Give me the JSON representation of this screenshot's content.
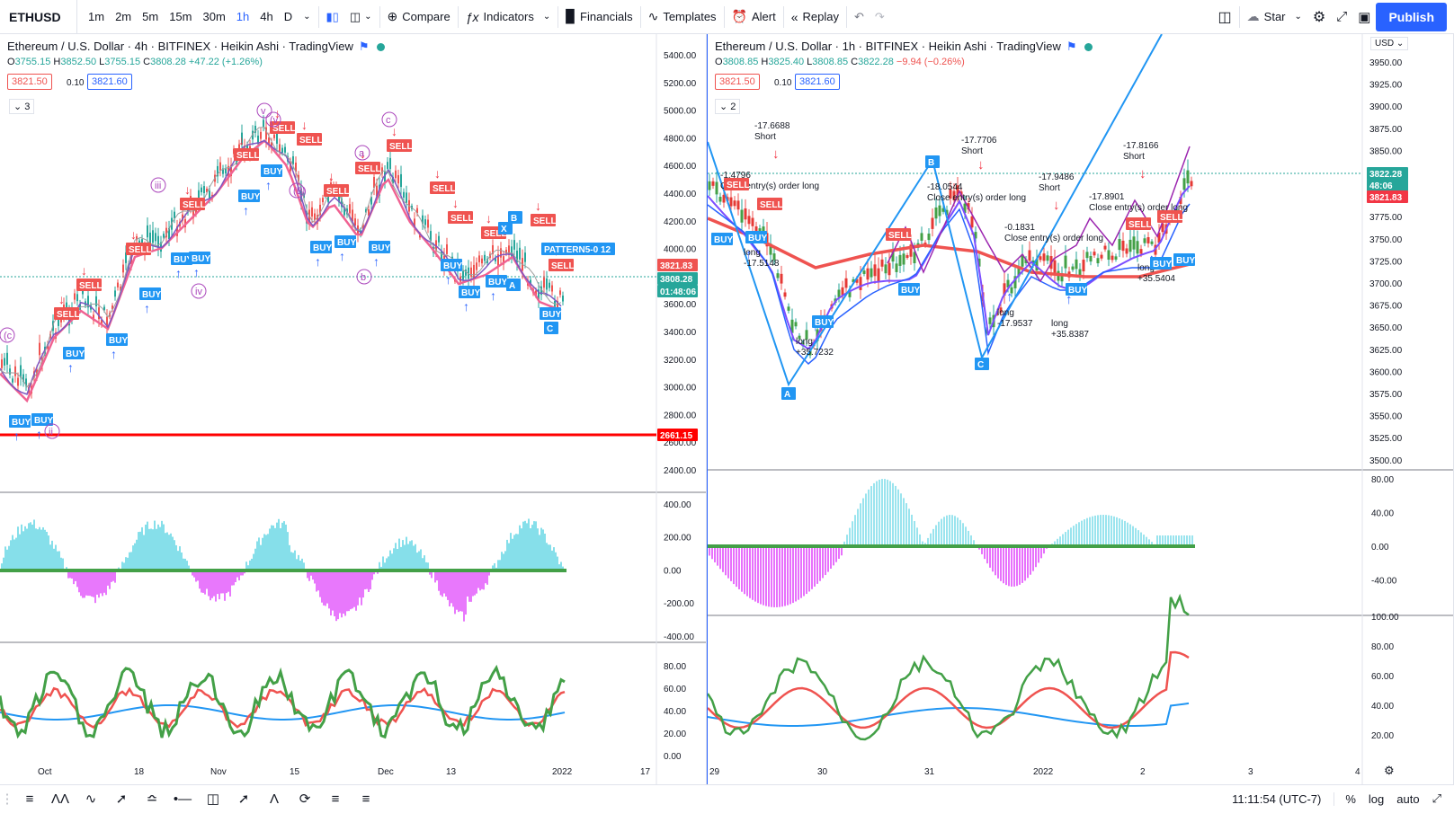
{
  "toolbar": {
    "symbol": "ETHUSD",
    "intervals": [
      "1m",
      "2m",
      "5m",
      "15m",
      "30m",
      "1h",
      "4h",
      "D"
    ],
    "active_interval": "1h",
    "compare": "Compare",
    "indicators": "Indicators",
    "financials": "Financials",
    "templates": "Templates",
    "alert": "Alert",
    "replay": "Replay",
    "star": "Star",
    "publish": "Publish"
  },
  "left_pane": {
    "title": "Ethereum / U.S. Dollar · 4h · BITFINEX · Heikin Ashi · TradingView",
    "ohlc": {
      "o": "3755.15",
      "h": "3852.50",
      "l": "3755.15",
      "c": "3808.28",
      "chg": "+47.22 (+1.26%)"
    },
    "bid": "3821.50",
    "spread": "0.10",
    "ask": "3821.60",
    "collapsed_count": "3",
    "price_axis": [
      "5400.00",
      "5200.00",
      "5000.00",
      "4800.00",
      "4600.00",
      "4400.00",
      "4200.00",
      "4000.00",
      "3800.00",
      "3600.00",
      "3400.00",
      "3200.00",
      "3000.00",
      "2800.00",
      "2600.00",
      "2400.00"
    ],
    "price_tags": {
      "last": "3821.83",
      "close": "3808.28",
      "countdown": "01:48:06",
      "line": "2661.15"
    },
    "osc_axis": [
      "400.00",
      "200.00",
      "0.00",
      "-200.00",
      "-400.00"
    ],
    "rsi_axis": [
      "80.00",
      "60.00",
      "40.00",
      "20.00",
      "0.00"
    ],
    "time_axis": [
      "Oct",
      "18",
      "Nov",
      "15",
      "Dec",
      "13",
      "2022",
      "17"
    ],
    "pattern_label": "PATTERN5-0 12",
    "wave_labels": [
      "(c",
      "ii",
      "iii",
      "iv",
      "v",
      "(v",
      "a",
      "b",
      "c",
      "(B)",
      "A",
      "B",
      "C",
      "X"
    ]
  },
  "right_pane": {
    "title": "Ethereum / U.S. Dollar · 1h · BITFINEX · Heikin Ashi · TradingView",
    "ohlc": {
      "o": "3808.85",
      "h": "3825.40",
      "l": "3808.85",
      "c": "3822.28",
      "chg": "−9.94 (−0.26%)"
    },
    "bid": "3821.50",
    "spread": "0.10",
    "ask": "3821.60",
    "collapsed_count": "2",
    "currency": "USD",
    "price_axis": [
      "3950.00",
      "3925.00",
      "3900.00",
      "3875.00",
      "3850.00",
      "3825.00",
      "3800.00",
      "3775.00",
      "3750.00",
      "3725.00",
      "3700.00",
      "3675.00",
      "3650.00",
      "3625.00",
      "3600.00",
      "3575.00",
      "3550.00",
      "3525.00",
      "3500.00"
    ],
    "price_tags": {
      "last": "3822.28",
      "countdown": "48:06",
      "red": "3821.83"
    },
    "osc_axis": [
      "80.00",
      "40.00",
      "0.00",
      "-40.00"
    ],
    "rsi_axis": [
      "100.00",
      "80.00",
      "60.00",
      "40.00",
      "20.00"
    ],
    "time_axis": [
      "29",
      "30",
      "31",
      "2022",
      "2",
      "3",
      "4"
    ],
    "annotations": [
      {
        "t1": "-17.6688",
        "t2": "Short"
      },
      {
        "t1": "-1.4796",
        "t2": "Close entry(s) order long"
      },
      {
        "t1": "long",
        "t2": "-17.5148"
      },
      {
        "t1": "long",
        "t2": "+35.7232"
      },
      {
        "t1": "-17.7706",
        "t2": "Short"
      },
      {
        "t1": "-18.0544",
        "t2": "Close entry(s) order long"
      },
      {
        "t1": "long",
        "t2": "-17.9537"
      },
      {
        "t1": "-17.9486",
        "t2": "Short"
      },
      {
        "t1": "-0.1831",
        "t2": "Close entry(s) order long"
      },
      {
        "t1": "long",
        "t2": "+35.8387"
      },
      {
        "t1": "-17.8166",
        "t2": "Short"
      },
      {
        "t1": "-17.8901",
        "t2": "Close entry(s) order long"
      },
      {
        "t1": "long",
        "t2": "+35.5404"
      }
    ],
    "abc": [
      "A",
      "B",
      "C"
    ]
  },
  "bottombar": {
    "time": "11:11:54 (UTC-7)",
    "percent": "%",
    "log": "log",
    "auto": "auto"
  },
  "signals": {
    "buy": "BUY",
    "sell": "SELL"
  },
  "colors": {
    "accent": "#2962ff",
    "up": "#26a69a",
    "down": "#ef5350",
    "cyan": "#4dd0e1",
    "magenta": "#d500f9",
    "green": "#43a047"
  }
}
